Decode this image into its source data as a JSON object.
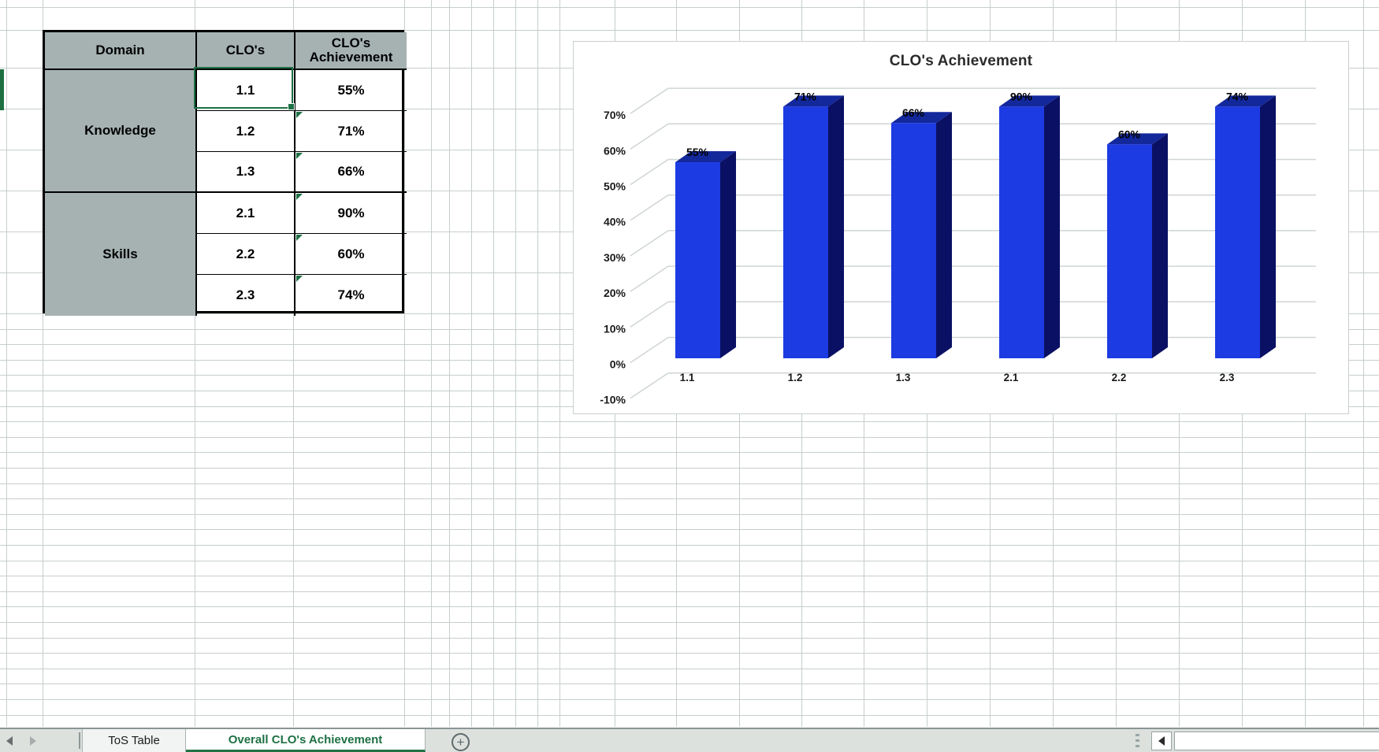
{
  "table": {
    "headers": [
      "Domain",
      "CLO's",
      "CLO's Achievement"
    ],
    "groups": [
      {
        "domain": "Knowledge",
        "rows": [
          {
            "clo": "1.1",
            "achievement": "55%"
          },
          {
            "clo": "1.2",
            "achievement": "71%"
          },
          {
            "clo": "1.3",
            "achievement": "66%"
          }
        ]
      },
      {
        "domain": "Skills",
        "rows": [
          {
            "clo": "2.1",
            "achievement": "90%"
          },
          {
            "clo": "2.2",
            "achievement": "60%"
          },
          {
            "clo": "2.3",
            "achievement": "74%"
          }
        ]
      }
    ],
    "selected_cell": "1.1"
  },
  "chart_data": {
    "type": "bar",
    "style": "3d-column",
    "title": "CLO's Achievement",
    "categories": [
      "1.1",
      "1.2",
      "1.3",
      "2.1",
      "2.2",
      "2.3"
    ],
    "values": [
      55,
      71,
      66,
      90,
      60,
      74
    ],
    "data_labels": [
      "55%",
      "71%",
      "66%",
      "90%",
      "60%",
      "74%"
    ],
    "y_ticks": [
      "70%",
      "60%",
      "50%",
      "40%",
      "30%",
      "20%",
      "10%",
      "0%",
      "-10%"
    ],
    "ylim": [
      -10,
      75
    ],
    "grid": true,
    "legend": "none",
    "bar_color": "#1d3be2",
    "bar_top_color": "#13289b",
    "bar_side_color": "#0a1063",
    "gridline_color": "#cfd4d4"
  },
  "tabs": {
    "items": [
      {
        "label": "ToS Table",
        "active": false
      },
      {
        "label": "Overall CLO's Achievement",
        "active": true
      }
    ]
  },
  "icons": {
    "prev_sheet": "left-triangle",
    "next_sheet": "right-triangle",
    "add_sheet": "+",
    "scroll_left": "left-triangle",
    "grip": "vertical-dots"
  },
  "colors": {
    "excel_green": "#217346",
    "header_fill": "#a6b2b2",
    "grid_line": "#c6cecd"
  }
}
